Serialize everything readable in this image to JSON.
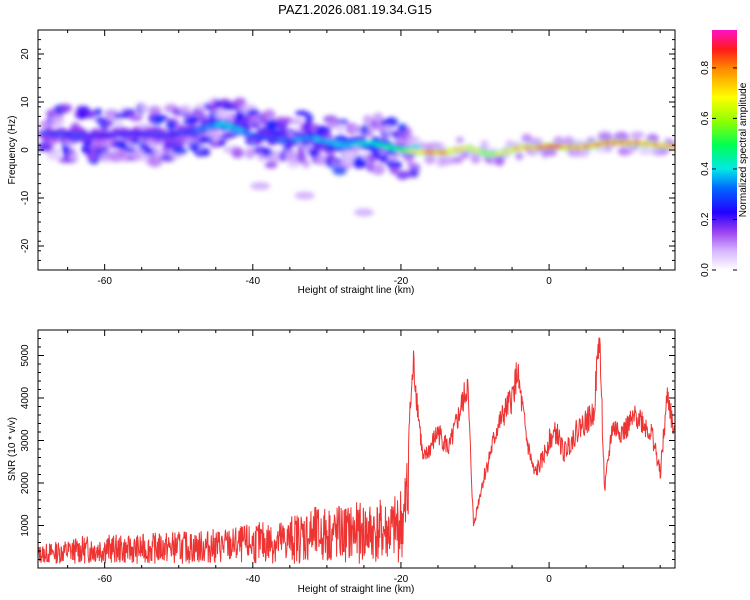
{
  "title": "PAZ1.2026.081.19.34.G15",
  "chart_data": [
    {
      "type": "heatmap",
      "name": "spectrogram",
      "xlabel": "Height of straight line (km)",
      "ylabel": "Frequency (Hz)",
      "xlim": [
        -69,
        17
      ],
      "ylim": [
        -25,
        25
      ],
      "xticks": [
        -60,
        -40,
        -20,
        0
      ],
      "yticks": [
        -20,
        -10,
        0,
        10,
        20
      ],
      "colorbar": {
        "label": "Normalized spectral amplitude",
        "range": [
          0,
          0.95
        ],
        "ticks": [
          0.0,
          0.2,
          0.4,
          0.6,
          0.8
        ]
      },
      "ridge": {
        "x": [
          -68,
          -64,
          -60,
          -56,
          -52,
          -48,
          -44,
          -40,
          -36,
          -32,
          -28,
          -24,
          -20,
          -17,
          -14,
          -11,
          -8,
          -6,
          -4,
          -2,
          0,
          4,
          8,
          12,
          16
        ],
        "freq": [
          3.5,
          3.2,
          3.0,
          3.5,
          3.0,
          4.0,
          5.5,
          3.0,
          2.0,
          2.5,
          1.0,
          1.5,
          0.0,
          -0.5,
          -0.5,
          0.5,
          -1.0,
          -0.5,
          0.5,
          0.5,
          0.8,
          0.5,
          1.5,
          1.5,
          0.8
        ],
        "amplitude": [
          0.3,
          0.32,
          0.28,
          0.3,
          0.3,
          0.32,
          0.45,
          0.35,
          0.35,
          0.4,
          0.42,
          0.45,
          0.55,
          0.85,
          0.88,
          0.75,
          0.7,
          0.7,
          0.85,
          0.8,
          0.92,
          0.85,
          0.9,
          0.85,
          0.85
        ]
      },
      "blobs": [
        {
          "x": -39,
          "freq": -7.5,
          "amplitude": 0.08
        },
        {
          "x": -33,
          "freq": -9.5,
          "amplitude": 0.08
        },
        {
          "x": -25,
          "freq": -13.0,
          "amplitude": 0.08
        }
      ]
    },
    {
      "type": "line",
      "name": "snr",
      "xlabel": "Height of straight line (km)",
      "ylabel": "SNR (10 * v/v)",
      "xlim": [
        -69,
        17
      ],
      "ylim": [
        0,
        5600
      ],
      "xticks": [
        -60,
        -40,
        -20,
        0
      ],
      "yticks": [
        1000,
        2000,
        3000,
        4000,
        5000
      ],
      "color": "#ee3333",
      "series": [
        {
          "name": "SNR",
          "x": [
            -69,
            -66,
            -63,
            -60,
            -57,
            -54,
            -51,
            -48,
            -45,
            -42,
            -39,
            -36,
            -33,
            -30,
            -27,
            -24,
            -21,
            -19.5,
            -18.3,
            -17,
            -15,
            -13.5,
            -12,
            -11,
            -10.2,
            -9,
            -7,
            -5,
            -4.3,
            -3,
            -2,
            -1,
            0,
            1,
            2,
            4,
            6,
            6.8,
            7.5,
            8.5,
            10,
            12,
            14,
            15,
            16,
            17
          ],
          "y": [
            400,
            500,
            600,
            650,
            600,
            650,
            700,
            700,
            750,
            800,
            900,
            950,
            1200,
            1250,
            1300,
            1350,
            1400,
            1900,
            4800,
            2500,
            3200,
            2800,
            3700,
            4300,
            1000,
            2000,
            3300,
            4000,
            4600,
            3000,
            2200,
            2500,
            3000,
            3200,
            2700,
            3300,
            3600,
            5500,
            1800,
            3300,
            3200,
            3600,
            3100,
            2200,
            4100,
            3000
          ]
        }
      ]
    }
  ]
}
